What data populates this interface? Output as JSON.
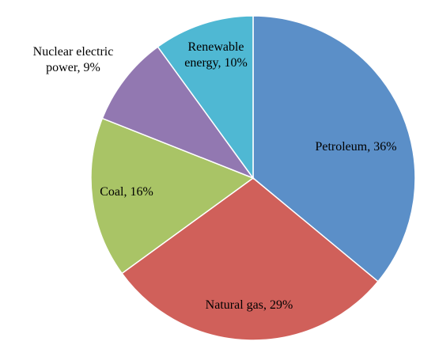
{
  "chart_data": {
    "type": "pie",
    "values": [
      36,
      29,
      16,
      9,
      10
    ],
    "value_labels": [
      "Petroleum, 36%",
      "Natural gas, 29%",
      "Coal, 16%",
      "Nuclear electric power, 9%",
      "Renewable energy, 10%"
    ],
    "colors": [
      "#5b8fc8",
      "#d0605a",
      "#a9c466",
      "#9278b1",
      "#4fb8d3"
    ]
  }
}
